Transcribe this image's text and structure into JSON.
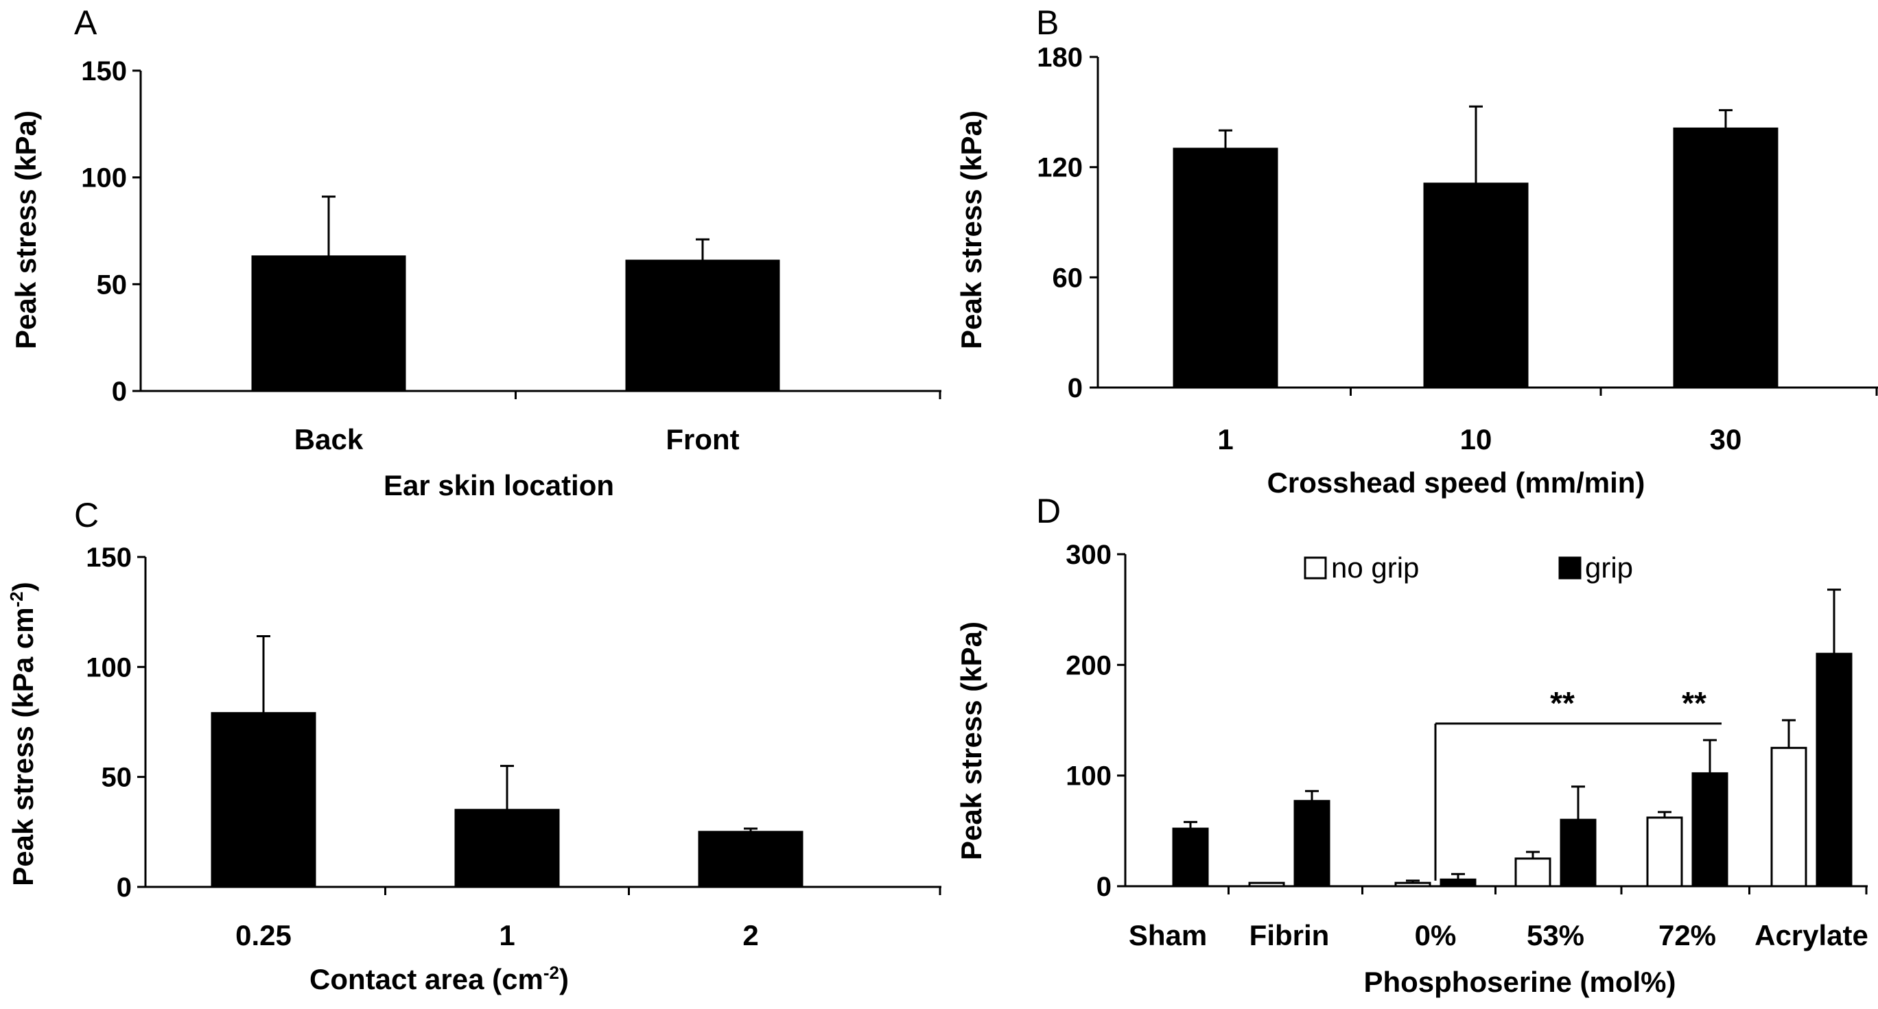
{
  "chart_data": [
    {
      "panel": "A",
      "type": "bar",
      "categories": [
        "Back",
        "Front"
      ],
      "values": [
        63,
        61
      ],
      "errors": [
        28,
        10
      ],
      "xlabel": "Ear skin location",
      "ylabel": "Peak stress (kPa)",
      "ylim": [
        0,
        150
      ],
      "yticks": [
        "0",
        "50",
        "100",
        "150"
      ]
    },
    {
      "panel": "B",
      "type": "bar",
      "categories": [
        "1",
        "10",
        "30"
      ],
      "values": [
        130,
        111,
        141
      ],
      "errors": [
        10,
        42,
        10
      ],
      "xlabel": "Crosshead speed (mm/min)",
      "ylabel": "Peak stress (kPa)",
      "ylim": [
        0,
        180
      ],
      "yticks": [
        "0",
        "60",
        "120",
        "180"
      ]
    },
    {
      "panel": "C",
      "type": "bar",
      "categories": [
        "0.25",
        "1",
        "2"
      ],
      "values": [
        79,
        35,
        25
      ],
      "errors": [
        35,
        20,
        1.5
      ],
      "xlabel": "Contact area (cm",
      "xlabel_sup": "-2",
      "xlabel_end": ")",
      "ylabel": "Peak stress (kPa cm",
      "ylabel_sup": "-2",
      "ylabel_end": ")",
      "ylim": [
        0,
        150
      ],
      "yticks": [
        "0",
        "50",
        "100",
        "150"
      ]
    },
    {
      "panel": "D",
      "type": "bar",
      "categories": [
        "Sham",
        "Fibrin",
        "0%",
        "53%",
        "72%",
        "Acrylate"
      ],
      "series": [
        {
          "name": "no grip",
          "fill": "#ffffff",
          "values": [
            0,
            3,
            3,
            25,
            62,
            125
          ],
          "errors": [
            0,
            0,
            2,
            6,
            5,
            25
          ]
        },
        {
          "name": "grip",
          "fill": "#000000",
          "values": [
            52,
            77,
            6,
            60,
            102,
            210
          ],
          "errors": [
            6,
            9,
            5,
            30,
            30,
            58
          ]
        }
      ],
      "xlabel": "Phosphoserine (mol%)",
      "ylabel": "Peak stress (kPa)",
      "ylim": [
        0,
        300
      ],
      "yticks": [
        "0",
        "100",
        "200",
        "300"
      ],
      "annotation": {
        "bracket_from": "0%",
        "bracket_to": "72%",
        "bracket_value": 147,
        "labels": [
          "**",
          "**"
        ],
        "label_at": [
          "53%",
          "72%"
        ]
      }
    }
  ],
  "colors": {
    "bar": "#000000",
    "axis": "#000000",
    "open_bar": "#ffffff"
  }
}
